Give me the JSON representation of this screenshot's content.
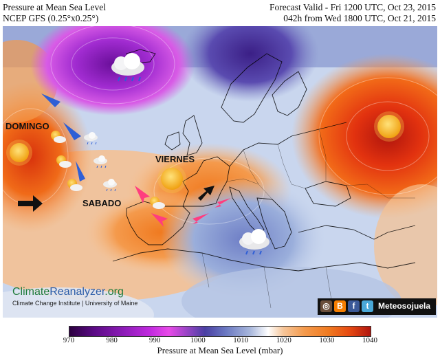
{
  "header": {
    "title": "Pressure at Mean Sea Level",
    "model": "NCEP GFS (0.25°x0.25°)",
    "valid": "Forecast Valid - Fri 1200 UTC, Oct 23, 2015",
    "lead": "042h from Wed 1800 UTC, Oct 21, 2015"
  },
  "map_labels": {
    "domingo": "DOMINGO",
    "viernes": "VIERNES",
    "sabado": "SABADO"
  },
  "branding": {
    "site": "ClimateReanalyzer.org",
    "site_a": "Climate",
    "site_b": "Reanalyzer",
    "site_c": ".org",
    "institute": "Climate Change Institute | University of Maine"
  },
  "social": {
    "handle": "Meteosojuela",
    "icons": [
      "instagram-icon",
      "blogger-icon",
      "facebook-icon",
      "twitter-icon"
    ]
  },
  "colorbar": {
    "ticks": [
      "970",
      "980",
      "990",
      "1000",
      "1010",
      "1020",
      "1030",
      "1040"
    ],
    "title": "Pressure at Mean Sea Level (mbar)",
    "min": 970,
    "max": 1040
  },
  "colors": {
    "high": "#e64a12",
    "low": "#8d1cb8",
    "arrow_blue": "#2e5fd6",
    "arrow_pink": "#ff3d7f",
    "arrow_black": "#111111"
  }
}
